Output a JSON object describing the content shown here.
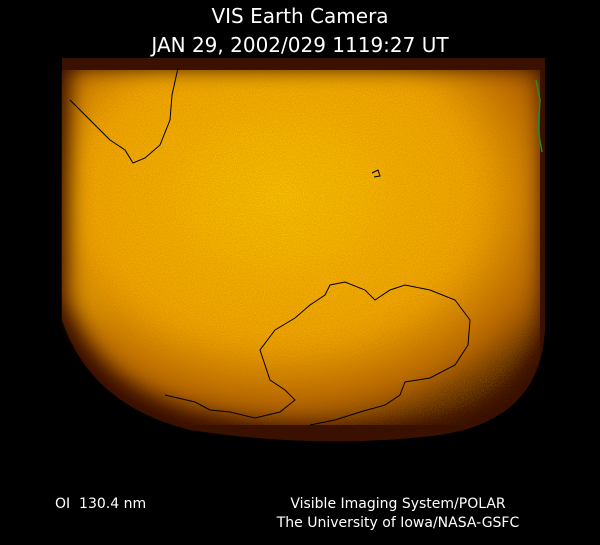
{
  "header": {
    "title": "VIS Earth Camera",
    "timestamp": "JAN 29, 2002/029 1119:27 UT"
  },
  "footer": {
    "wavelength": "OI  130.4 nm",
    "instrument": "Visible Imaging System/POLAR",
    "credit": "The University of Iowa/NASA-GSFC"
  }
}
